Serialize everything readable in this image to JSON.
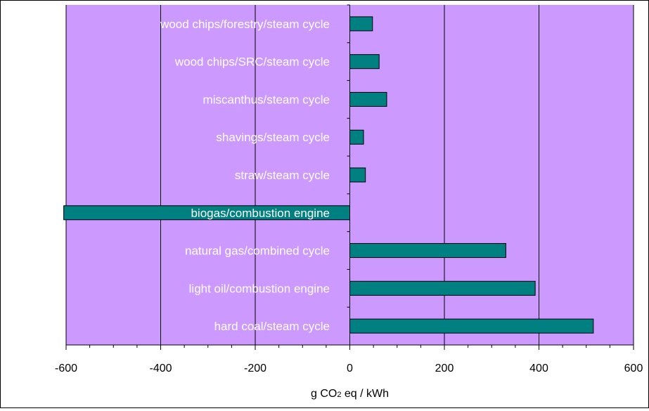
{
  "chart_data": {
    "type": "bar",
    "orientation": "horizontal",
    "categories": [
      "wood chips/forestry/steam cycle",
      "wood chips/SRC/steam cycle",
      "miscanthus/steam cycle",
      "shavings/steam cycle",
      "straw/steam cycle",
      "biogas/combustion engine",
      "natural gas/combined cycle",
      "light oil/combustion engine",
      "hard coal/steam cycle"
    ],
    "values": [
      48,
      62,
      78,
      29,
      33,
      -605,
      330,
      392,
      515
    ],
    "xlabel_main": "g CO",
    "xlabel_sub": "2",
    "xlabel_rest": " eq / kWh",
    "xlim": [
      -600,
      600
    ],
    "xticks": [
      "-600",
      "-400",
      "-200",
      "0",
      "200",
      "400",
      "600"
    ],
    "grid": "vertical major lines",
    "plot_background": "#cc99ff",
    "bar_color": "#008080",
    "label_color": "#ffffff"
  }
}
